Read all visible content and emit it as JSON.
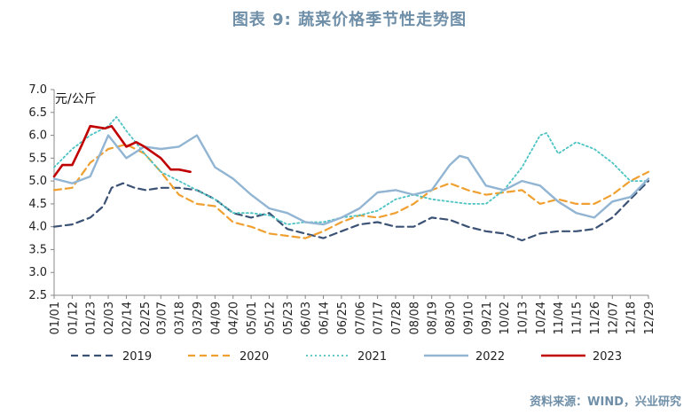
{
  "title": "图表 9:    蔬菜价格季节性走势图",
  "source": "资料来源：WIND，兴业研究",
  "chart_data": {
    "type": "line",
    "unit": "元/公斤",
    "ylim": [
      2.5,
      7.0
    ],
    "yticks": [
      "7.0",
      "6.5",
      "6.0",
      "5.5",
      "5.0",
      "4.5",
      "4.0",
      "3.5",
      "3.0",
      "2.5"
    ],
    "x_ticks": [
      "01/01",
      "01/12",
      "01/23",
      "02/03",
      "02/14",
      "02/25",
      "03/07",
      "03/18",
      "03/29",
      "04/09",
      "04/20",
      "05/01",
      "05/12",
      "05/23",
      "06/03",
      "06/14",
      "06/25",
      "07/06",
      "07/17",
      "07/28",
      "08/08",
      "08/19",
      "08/30",
      "09/10",
      "09/21",
      "10/02",
      "10/13",
      "10/24",
      "11/04",
      "11/15",
      "11/26",
      "12/07",
      "12/18",
      "12/29"
    ],
    "legend_position": "bottom",
    "series": [
      {
        "name": "2019",
        "color": "#3c5275",
        "dash": "dashed",
        "x": [
          "01/01",
          "01/12",
          "01/23",
          "01/31",
          "02/05",
          "02/12",
          "02/19",
          "02/26",
          "03/07",
          "03/18",
          "03/29",
          "04/09",
          "04/20",
          "05/01",
          "05/12",
          "05/23",
          "06/03",
          "06/14",
          "06/25",
          "07/06",
          "07/17",
          "07/28",
          "08/08",
          "08/19",
          "08/30",
          "09/10",
          "09/21",
          "10/02",
          "10/13",
          "10/24",
          "11/04",
          "11/15",
          "11/26",
          "12/07",
          "12/18",
          "12/29"
        ],
        "values": [
          4.0,
          4.05,
          4.2,
          4.45,
          4.85,
          4.95,
          4.85,
          4.8,
          4.85,
          4.85,
          4.8,
          4.6,
          4.3,
          4.2,
          4.3,
          3.95,
          3.85,
          3.75,
          3.9,
          4.05,
          4.1,
          4.0,
          4.0,
          4.2,
          4.15,
          4.0,
          3.9,
          3.85,
          3.7,
          3.85,
          3.9,
          3.9,
          3.95,
          4.2,
          4.6,
          5.0
        ]
      },
      {
        "name": "2020",
        "color": "#f0a030",
        "dash": "dashed",
        "x": [
          "01/01",
          "01/12",
          "01/23",
          "02/03",
          "02/14",
          "02/25",
          "03/07",
          "03/18",
          "03/29",
          "04/09",
          "04/20",
          "05/01",
          "05/12",
          "05/23",
          "06/03",
          "06/14",
          "06/25",
          "07/06",
          "07/17",
          "07/28",
          "08/08",
          "08/19",
          "08/30",
          "09/10",
          "09/21",
          "10/02",
          "10/13",
          "10/24",
          "11/04",
          "11/15",
          "11/26",
          "12/07",
          "12/18",
          "12/29"
        ],
        "values": [
          4.8,
          4.85,
          5.4,
          5.7,
          5.8,
          5.6,
          5.2,
          4.7,
          4.5,
          4.45,
          4.1,
          4.0,
          3.85,
          3.8,
          3.75,
          3.9,
          4.1,
          4.25,
          4.2,
          4.3,
          4.5,
          4.8,
          4.95,
          4.8,
          4.7,
          4.75,
          4.8,
          4.5,
          4.6,
          4.5,
          4.5,
          4.7,
          5.0,
          5.2
        ]
      },
      {
        "name": "2021",
        "color": "#4dc3c3",
        "dash": "dotted",
        "x": [
          "01/01",
          "01/12",
          "01/23",
          "02/03",
          "02/08",
          "02/14",
          "02/25",
          "03/07",
          "03/18",
          "03/29",
          "04/09",
          "04/20",
          "05/01",
          "05/12",
          "05/23",
          "06/03",
          "06/14",
          "06/25",
          "07/06",
          "07/17",
          "07/28",
          "08/08",
          "08/19",
          "08/30",
          "09/10",
          "09/21",
          "10/02",
          "10/13",
          "10/24",
          "10/28",
          "11/04",
          "11/15",
          "11/26",
          "12/07",
          "12/18",
          "12/29"
        ],
        "values": [
          5.3,
          5.7,
          6.0,
          6.2,
          6.4,
          6.1,
          5.6,
          5.2,
          5.0,
          4.8,
          4.6,
          4.3,
          4.3,
          4.25,
          4.05,
          4.1,
          4.1,
          4.2,
          4.25,
          4.35,
          4.6,
          4.7,
          4.6,
          4.55,
          4.5,
          4.5,
          4.8,
          5.3,
          6.0,
          6.05,
          5.6,
          5.85,
          5.7,
          5.4,
          5.0,
          5.0
        ]
      },
      {
        "name": "2022",
        "color": "#92b5d3",
        "dash": "solid",
        "x": [
          "01/01",
          "01/12",
          "01/23",
          "02/03",
          "02/14",
          "02/25",
          "03/07",
          "03/18",
          "03/29",
          "04/09",
          "04/20",
          "05/01",
          "05/12",
          "05/23",
          "06/03",
          "06/14",
          "06/25",
          "07/06",
          "07/17",
          "07/28",
          "08/08",
          "08/19",
          "08/30",
          "09/05",
          "09/10",
          "09/21",
          "10/02",
          "10/13",
          "10/24",
          "11/04",
          "11/15",
          "11/26",
          "12/07",
          "12/18",
          "12/29"
        ],
        "values": [
          5.05,
          4.95,
          5.1,
          6.0,
          5.5,
          5.75,
          5.7,
          5.75,
          6.0,
          5.3,
          5.05,
          4.7,
          4.4,
          4.3,
          4.1,
          4.05,
          4.2,
          4.4,
          4.75,
          4.8,
          4.7,
          4.8,
          5.35,
          5.55,
          5.5,
          4.9,
          4.8,
          5.0,
          4.9,
          4.55,
          4.3,
          4.2,
          4.55,
          4.65,
          5.05
        ]
      },
      {
        "name": "2023",
        "color": "#c00000",
        "dash": "solid",
        "x": [
          "01/01",
          "01/06",
          "01/12",
          "01/18",
          "01/23",
          "02/01",
          "02/05",
          "02/14",
          "02/20",
          "02/25",
          "03/07",
          "03/13",
          "03/18",
          "03/25"
        ],
        "values": [
          5.1,
          5.35,
          5.35,
          5.8,
          6.2,
          6.15,
          6.2,
          5.75,
          5.85,
          5.75,
          5.5,
          5.25,
          5.25,
          5.2
        ]
      }
    ]
  }
}
